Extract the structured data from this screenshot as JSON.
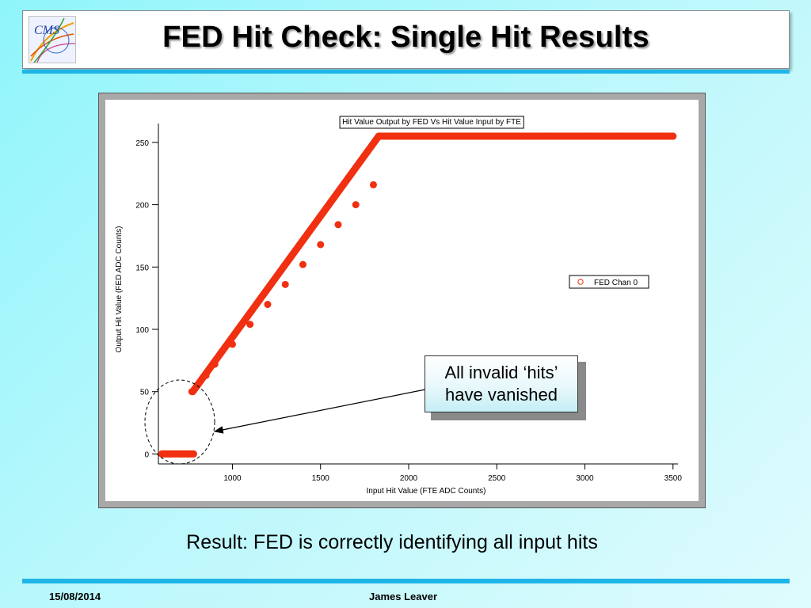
{
  "slide": {
    "title": "FED Hit Check: Single Hit Results",
    "result": "Result: FED is correctly identifying all input hits",
    "callout_line1": "All invalid ‘hits’",
    "callout_line2": "have vanished",
    "footer_date": "15/08/2014",
    "footer_author": "James Leaver"
  },
  "colors": {
    "accent": "#1fb5e8",
    "series": "#f03010",
    "background": "#a6f7fb"
  },
  "chart_data": {
    "type": "scatter",
    "title": "Hit Value Output by FED Vs Hit Value Input by FTE",
    "xlabel": "Input Hit Value (FTE ADC Counts)",
    "ylabel": "Output Hit Value (FED ADC Counts)",
    "xlim": [
      580,
      3510
    ],
    "ylim": [
      -8,
      262
    ],
    "xticks": [
      1000,
      1500,
      2000,
      2500,
      3000,
      3500
    ],
    "yticks": [
      0,
      50,
      100,
      150,
      200,
      250
    ],
    "legend": {
      "position": "right",
      "entries": [
        "FED Chan 0"
      ]
    },
    "grid": false,
    "series": [
      {
        "name": "FED Chan 0",
        "x": [
          600,
          650,
          700,
          750,
          770,
          800,
          850,
          900,
          1000,
          1100,
          1200,
          1300,
          1400,
          1500,
          1600,
          1700,
          1800,
          1830,
          1900,
          2000,
          2200,
          2400,
          2600,
          2800,
          3000,
          3200,
          3400,
          3500
        ],
        "y": [
          0,
          0,
          0,
          0,
          50,
          55,
          63,
          72,
          88,
          104,
          120,
          136,
          152,
          168,
          184,
          200,
          216,
          255,
          255,
          255,
          255,
          255,
          255,
          255,
          255,
          255,
          255,
          255
        ]
      }
    ],
    "segments": [
      {
        "x": [
          600,
          780
        ],
        "y": [
          0,
          0
        ]
      },
      {
        "x": [
          775,
          1830
        ],
        "y": [
          50,
          255
        ]
      },
      {
        "x": [
          1830,
          3500
        ],
        "y": [
          255,
          255
        ]
      }
    ]
  }
}
